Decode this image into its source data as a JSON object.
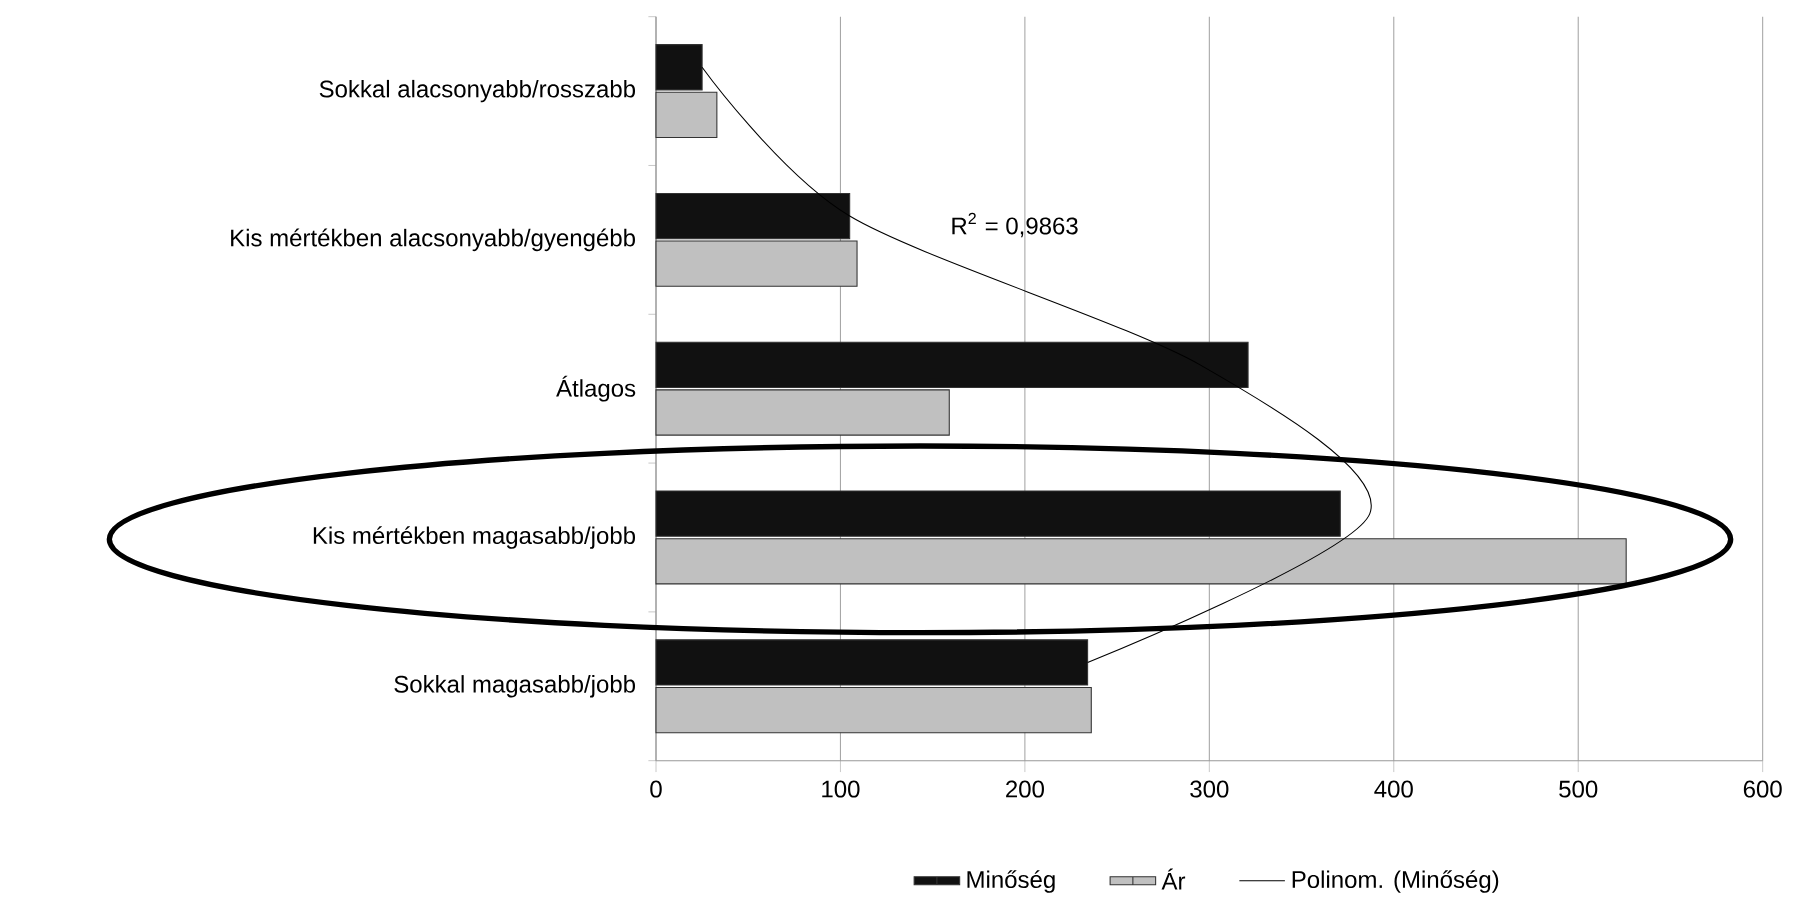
{
  "chart_data": {
    "type": "bar",
    "orientation": "horizontal",
    "categories": [
      "Sokkal alacsonyabb/rosszabb",
      "Kis mértékben alacsonyabb/gyengébb",
      "Átlagos",
      "Kis mértékben magasabb/jobb",
      "Sokkal magasabb/jobb"
    ],
    "series": [
      {
        "name": "Minőség",
        "color": "#111111",
        "values": [
          25,
          105,
          321,
          371,
          234
        ]
      },
      {
        "name": "Ár",
        "color": "#c0c0c0",
        "values": [
          33,
          109,
          159,
          526,
          236
        ]
      },
      {
        "name": "Polinom. (Minőség)",
        "type": "line",
        "color": "#000000",
        "values": [
          25,
          105,
          295,
          387,
          234
        ]
      }
    ],
    "xlim": [
      0,
      600
    ],
    "xticks": [
      0,
      100,
      200,
      300,
      400,
      500,
      600
    ],
    "grid": "x",
    "legend": "bottom",
    "annotations": [
      "R$^{2}$ = 0,9863"
    ]
  }
}
